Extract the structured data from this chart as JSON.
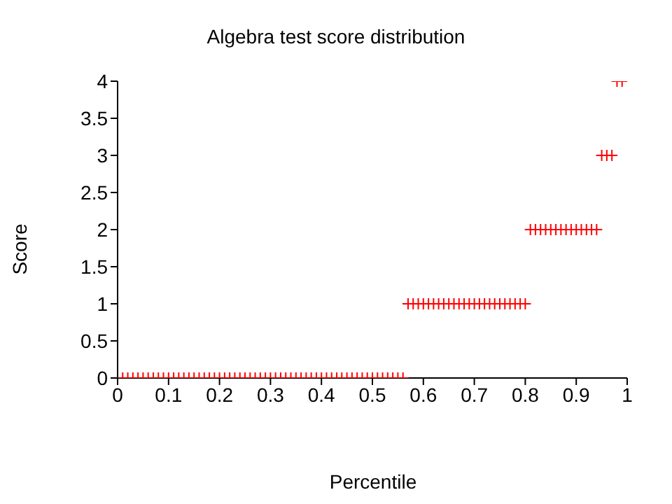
{
  "chart_data": {
    "type": "scatter",
    "title": "Algebra test score distribution",
    "xlabel": "Percentile",
    "ylabel": "Score",
    "x": [
      0.01,
      0.02,
      0.03,
      0.04,
      0.05,
      0.06,
      0.07,
      0.08,
      0.09,
      0.1,
      0.11,
      0.12,
      0.13,
      0.14,
      0.15,
      0.16,
      0.17,
      0.18,
      0.19,
      0.2,
      0.21,
      0.22,
      0.23,
      0.24,
      0.25,
      0.26,
      0.27,
      0.28,
      0.29,
      0.3,
      0.31,
      0.32,
      0.33,
      0.34,
      0.35,
      0.36,
      0.37,
      0.38,
      0.39,
      0.4,
      0.41,
      0.42,
      0.43,
      0.44,
      0.45,
      0.46,
      0.47,
      0.48,
      0.49,
      0.5,
      0.51,
      0.52,
      0.53,
      0.54,
      0.55,
      0.56,
      0.57,
      0.58,
      0.59,
      0.6,
      0.61,
      0.62,
      0.63,
      0.64,
      0.65,
      0.66,
      0.67,
      0.68,
      0.69,
      0.7,
      0.71,
      0.72,
      0.73,
      0.74,
      0.75,
      0.76,
      0.77,
      0.78,
      0.79,
      0.8,
      0.81,
      0.82,
      0.83,
      0.84,
      0.85,
      0.86,
      0.87,
      0.88,
      0.89,
      0.9,
      0.91,
      0.92,
      0.93,
      0.94,
      0.95,
      0.96,
      0.97,
      0.98,
      0.99
    ],
    "series": [
      {
        "color": "#ff0000",
        "values": [
          0,
          0,
          0,
          0,
          0,
          0,
          0,
          0,
          0,
          0,
          0,
          0,
          0,
          0,
          0,
          0,
          0,
          0,
          0,
          0,
          0,
          0,
          0,
          0,
          0,
          0,
          0,
          0,
          0,
          0,
          0,
          0,
          0,
          0,
          0,
          0,
          0,
          0,
          0,
          0,
          0,
          0,
          0,
          0,
          0,
          0,
          0,
          0,
          0,
          0,
          0,
          0,
          0,
          0,
          0,
          0,
          1,
          1,
          1,
          1,
          1,
          1,
          1,
          1,
          1,
          1,
          1,
          1,
          1,
          1,
          1,
          1,
          1,
          1,
          1,
          1,
          1,
          1,
          1,
          1,
          2,
          2,
          2,
          2,
          2,
          2,
          2,
          2,
          2,
          2,
          2,
          2,
          2,
          2,
          3,
          3,
          3,
          4,
          4
        ]
      }
    ],
    "xlim": [
      0,
      1
    ],
    "xticks": [
      0,
      0.1,
      0.2,
      0.3,
      0.4,
      0.5,
      0.6,
      0.7,
      0.8,
      0.9,
      1
    ],
    "ylim": [
      0,
      4
    ],
    "yticks": [
      0,
      0.5,
      1,
      1.5,
      2,
      2.5,
      3,
      3.5,
      4
    ],
    "marker": "cross",
    "grid": false,
    "legend": false
  }
}
